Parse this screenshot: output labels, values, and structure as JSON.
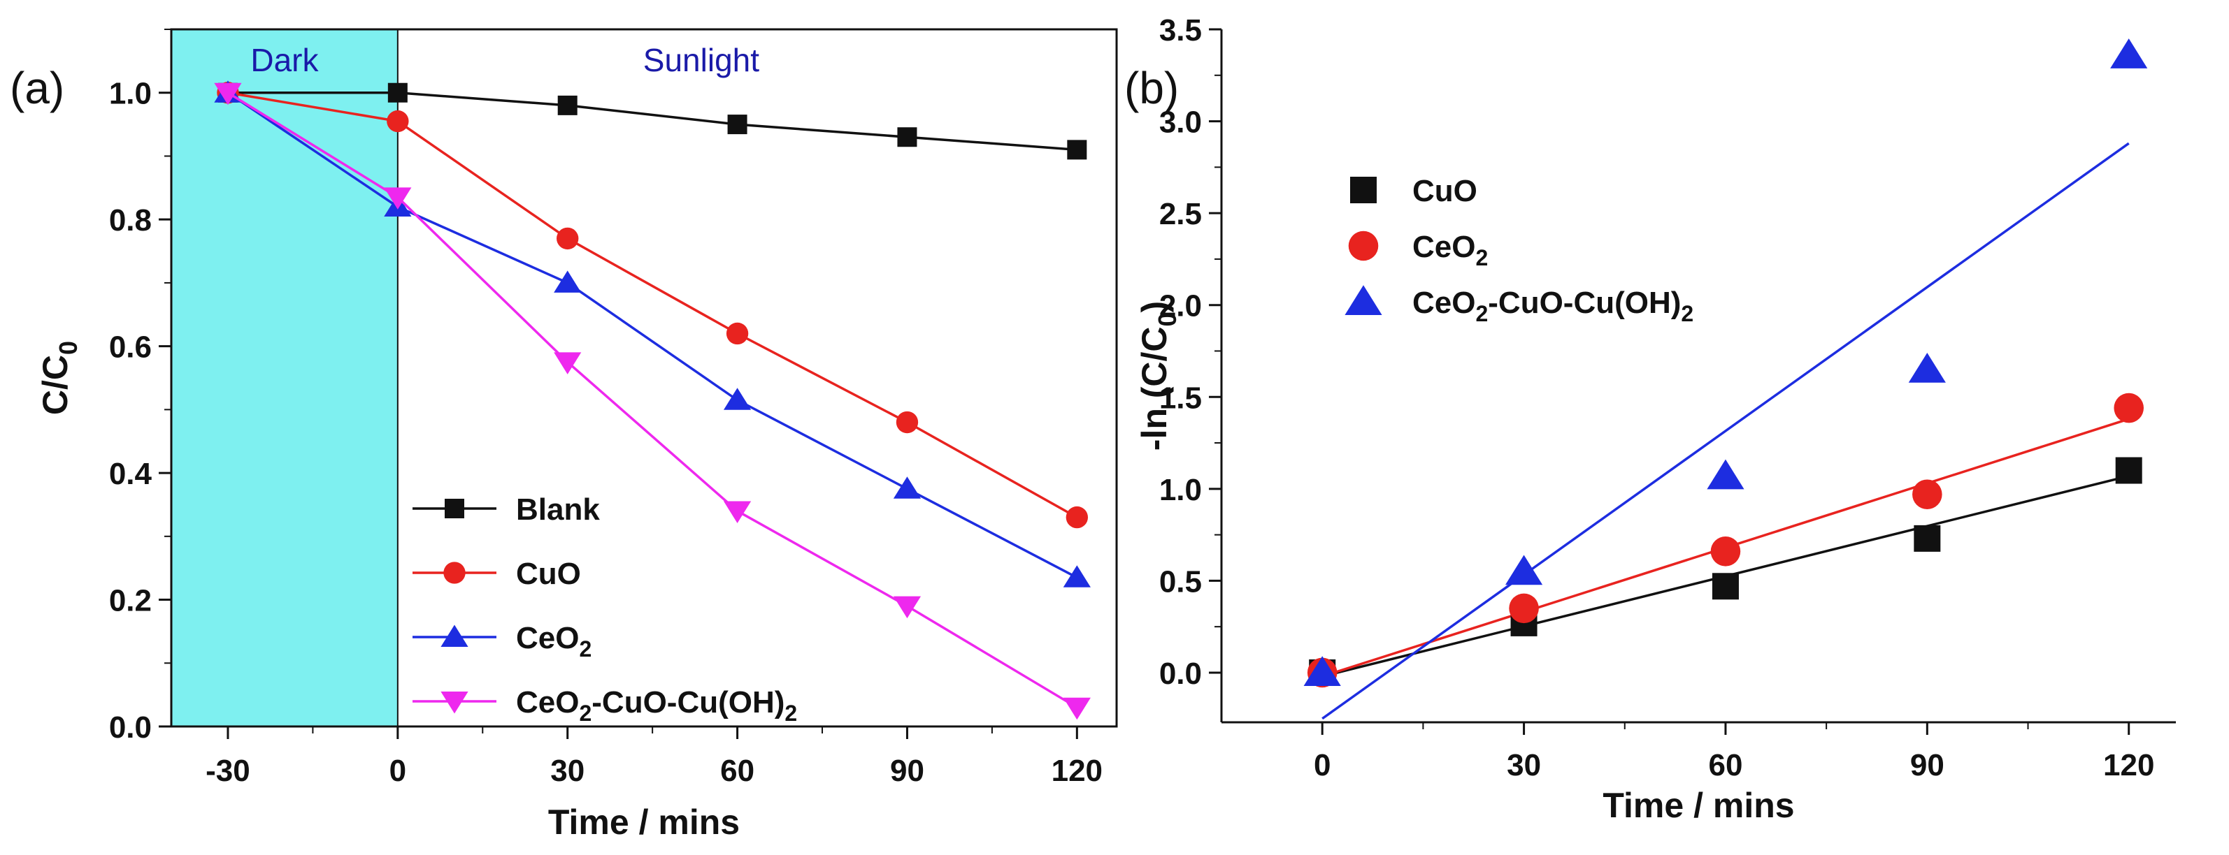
{
  "chart_data": [
    {
      "type": "line",
      "panel_label": "(a)",
      "x": [
        -30,
        0,
        30,
        60,
        90,
        120
      ],
      "xticks": [
        "-30",
        "0",
        "30",
        "60",
        "90",
        "120"
      ],
      "yticks": [
        "0.0",
        "0.2",
        "0.4",
        "0.6",
        "0.8",
        "1.0"
      ],
      "xlim": [
        -40,
        127
      ],
      "ylim": [
        0.0,
        1.1
      ],
      "xlabel": "Time / mins",
      "ylabel": {
        "main": "C/C",
        "sub": "0"
      },
      "regions": [
        {
          "label": "Dark",
          "from": -40,
          "to": 0,
          "color": "#7ef0f0"
        },
        {
          "label": "Sunlight",
          "from": 0,
          "to": 127,
          "color": "#ffffff"
        }
      ],
      "legend_position": "lower-right",
      "series": [
        {
          "name": "Blank",
          "sub": "",
          "suffix": "",
          "color": "#111111",
          "marker": "square",
          "values": [
            1.0,
            1.0,
            0.98,
            0.95,
            0.93,
            0.91
          ]
        },
        {
          "name": "CuO",
          "sub": "",
          "suffix": "",
          "color": "#e8231f",
          "marker": "circle",
          "values": [
            1.0,
            0.955,
            0.77,
            0.62,
            0.48,
            0.33
          ]
        },
        {
          "name": "CeO",
          "sub": "2",
          "suffix": "",
          "color": "#1d2de0",
          "marker": "triangle-up",
          "values": [
            1.0,
            0.82,
            0.7,
            0.515,
            0.375,
            0.235
          ]
        },
        {
          "name": "CeO",
          "sub": "2",
          "suffix": "-CuO-Cu(OH)",
          "sub2": "2",
          "color": "#ee28ee",
          "marker": "triangle-down",
          "values": [
            1.0,
            0.835,
            0.575,
            0.34,
            0.19,
            0.03
          ]
        }
      ]
    },
    {
      "type": "scatter",
      "panel_label": "(b)",
      "x": [
        0,
        30,
        60,
        90,
        120
      ],
      "xticks": [
        "0",
        "30",
        "60",
        "90",
        "120"
      ],
      "yticks": [
        "0.0",
        "0.5",
        "1.0",
        "1.5",
        "2.0",
        "2.5",
        "3.0",
        "3.5"
      ],
      "xlim": [
        -15,
        127
      ],
      "ylim": [
        -0.27,
        3.5
      ],
      "xlabel": "Time / mins",
      "ylabel": {
        "main": "-ln (C/C",
        "sub": "0",
        "end": ")"
      },
      "legend_position": "upper-left",
      "series": [
        {
          "name": "CuO",
          "sub": "",
          "suffix": "",
          "color": "#111111",
          "marker": "square",
          "values": [
            0.0,
            0.27,
            0.47,
            0.73,
            1.1
          ],
          "fit": [
            0,
            -0.02,
            120,
            1.07
          ]
        },
        {
          "name": "CeO",
          "sub": "2",
          "suffix": "",
          "color": "#e8231f",
          "marker": "circle",
          "values": [
            0.0,
            0.35,
            0.66,
            0.97,
            1.44
          ],
          "fit": [
            0,
            -0.02,
            120,
            1.38
          ]
        },
        {
          "name": "CeO",
          "sub": "2",
          "suffix": "-CuO-Cu(OH)",
          "sub2": "2",
          "color": "#1d2de0",
          "marker": "triangle-up",
          "values": [
            0.0,
            0.55,
            1.07,
            1.65,
            3.36
          ],
          "fit": [
            0,
            -0.25,
            120,
            2.88
          ]
        }
      ]
    }
  ]
}
